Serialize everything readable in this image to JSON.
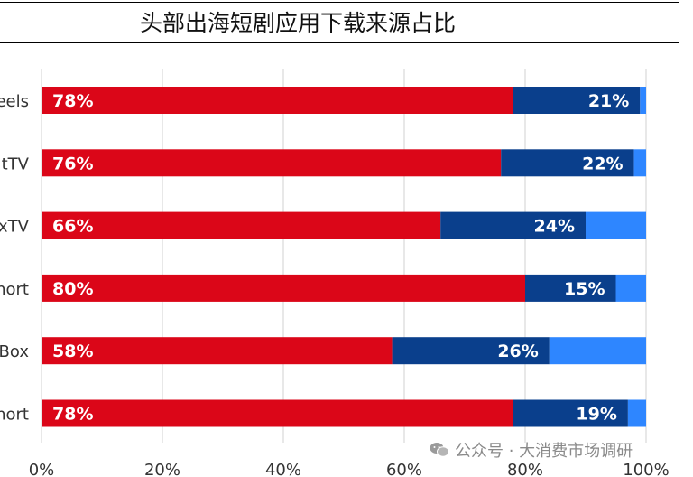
{
  "title": "头部出海短剧应用下载来源占比",
  "watermark": "公众号 · 大消费市场调研",
  "colors": {
    "series1": "#DB0618",
    "series2": "#0A3F8C",
    "series3": "#2E86FF",
    "grid": "#D0D0D0",
    "axis_text": "#333333",
    "label_text": "#FFFFFF"
  },
  "chart_data": {
    "type": "bar",
    "orientation": "horizontal",
    "stacked": true,
    "categories": [
      "eels",
      "tTV",
      "xTV",
      "hort",
      "Box",
      "hort"
    ],
    "series": [
      {
        "values": [
          78,
          76,
          66,
          80,
          58,
          78
        ],
        "labels": [
          "78%",
          "76%",
          "66%",
          "80%",
          "58%",
          "78%"
        ]
      },
      {
        "values": [
          21,
          22,
          24,
          15,
          26,
          19
        ],
        "labels": [
          "21%",
          "22%",
          "24%",
          "15%",
          "26%",
          "19%"
        ]
      },
      {
        "values": [
          1,
          2,
          10,
          5,
          16,
          3
        ]
      }
    ],
    "x_ticks": [
      "0%",
      "20%",
      "40%",
      "60%",
      "80%",
      "100%"
    ],
    "xlim": [
      0,
      100
    ],
    "grid": true,
    "legend": "none"
  }
}
